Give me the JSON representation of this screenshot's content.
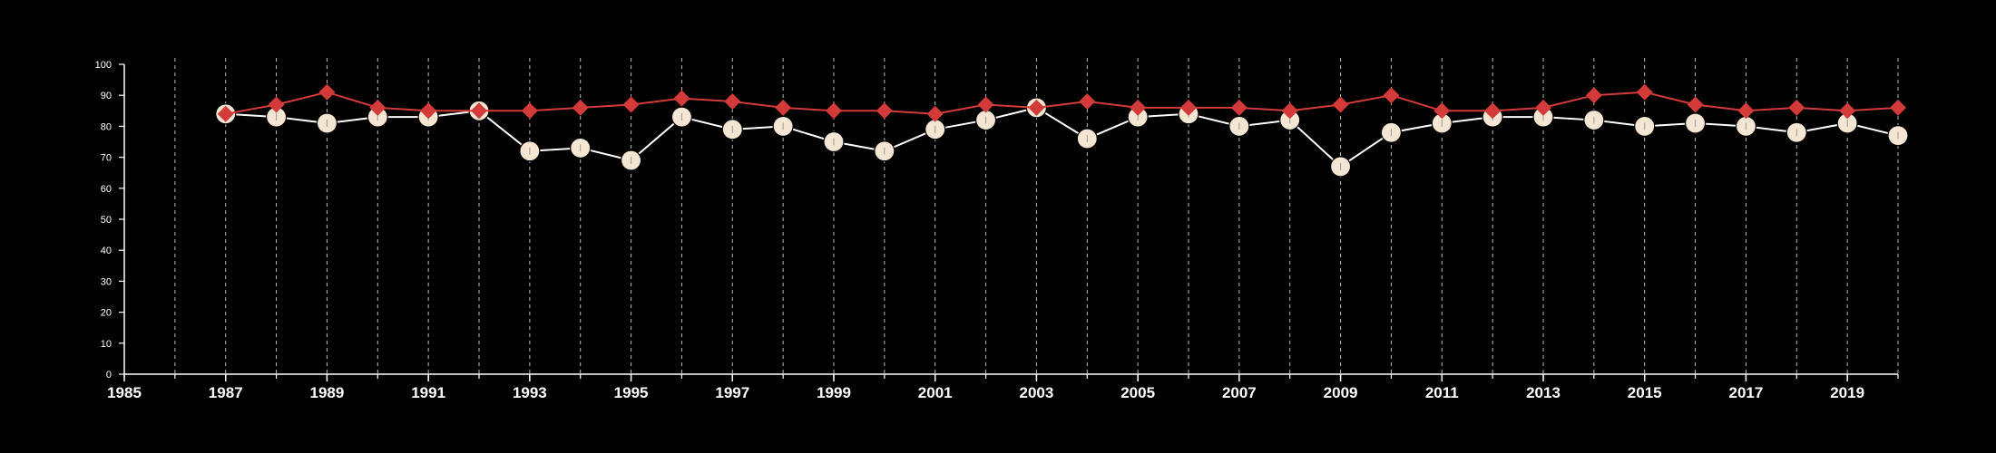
{
  "chart_data": {
    "type": "line",
    "title": "",
    "xlabel": "",
    "ylabel": "",
    "xlim": [
      1985,
      2020
    ],
    "ylim": [
      0,
      100
    ],
    "y_ticks": [
      0,
      10,
      20,
      30,
      40,
      50,
      60,
      70,
      80,
      90,
      100
    ],
    "x_ticks": [
      1985,
      1987,
      1989,
      1991,
      1993,
      1995,
      1997,
      1999,
      2001,
      2003,
      2005,
      2007,
      2009,
      2011,
      2013,
      2015,
      2017,
      2019
    ],
    "vertical_gridlines": "dashed, every year from 1986 to 2020",
    "legend": "none",
    "x": [
      1987,
      1988,
      1989,
      1990,
      1991,
      1992,
      1993,
      1994,
      1995,
      1996,
      1997,
      1998,
      1999,
      2000,
      2001,
      2002,
      2003,
      2004,
      2005,
      2006,
      2007,
      2008,
      2009,
      2010,
      2011,
      2012,
      2013,
      2014,
      2015,
      2016,
      2017,
      2018,
      2019,
      2020
    ],
    "series": [
      {
        "marker": "diamond",
        "color": "#d33a3a",
        "values": [
          84,
          87,
          91,
          86,
          85,
          85,
          85,
          86,
          87,
          89,
          88,
          86,
          85,
          85,
          84,
          87,
          86,
          88,
          86,
          86,
          86,
          85,
          87,
          90,
          85,
          85,
          86,
          90,
          91,
          87,
          85,
          86,
          85,
          86
        ]
      },
      {
        "marker": "circle",
        "color": "#f5e6d3",
        "line_color": "#ffffff",
        "values": [
          84,
          83,
          81,
          83,
          83,
          85,
          72,
          73,
          69,
          83,
          79,
          80,
          75,
          72,
          79,
          82,
          86,
          76,
          83,
          84,
          80,
          82,
          67,
          78,
          81,
          83,
          83,
          82,
          80,
          81,
          80,
          78,
          81,
          77
        ]
      }
    ]
  }
}
